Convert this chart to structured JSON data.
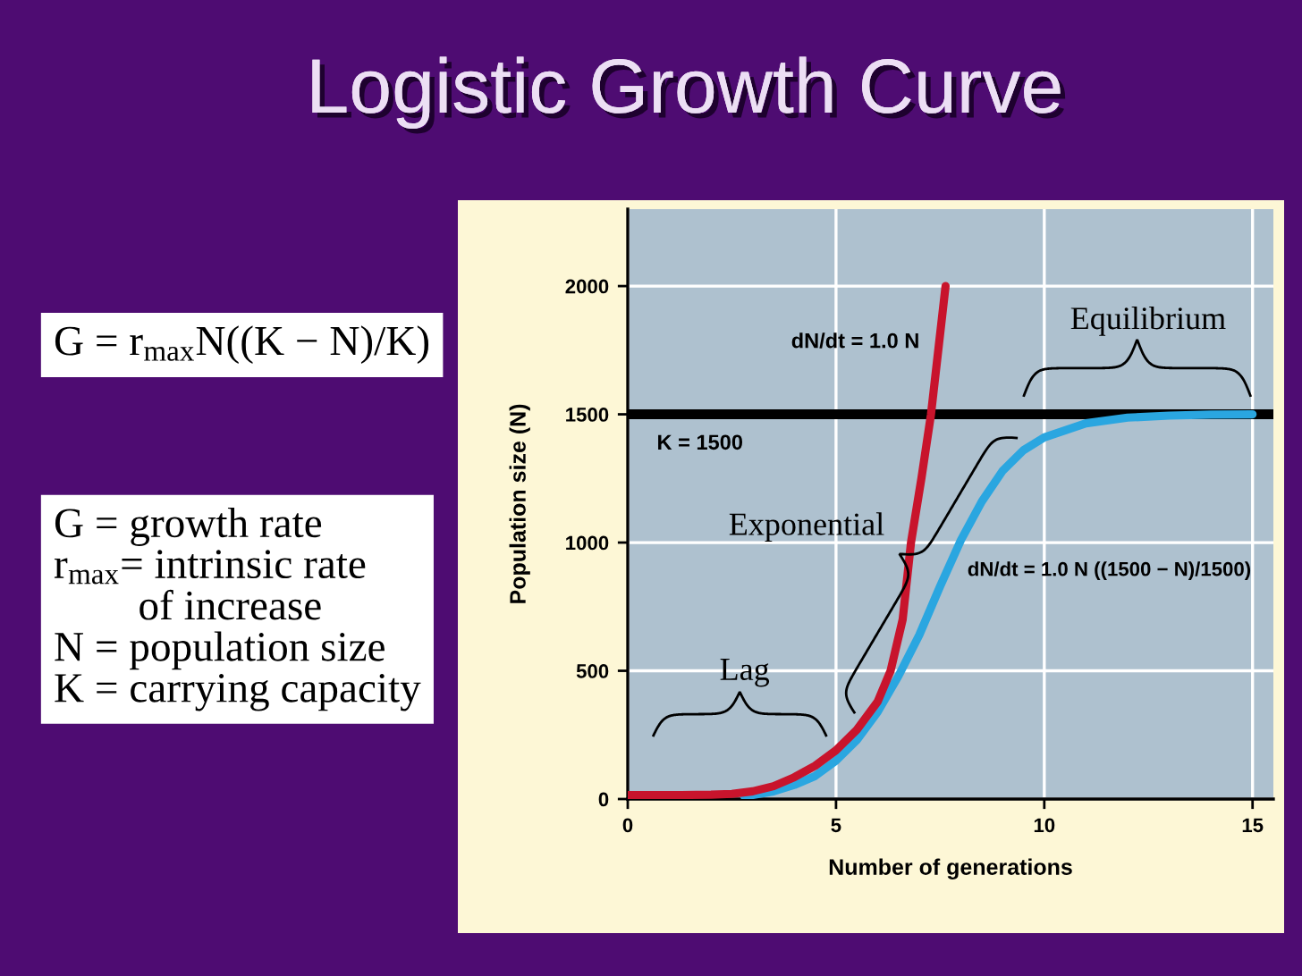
{
  "chart_data": {
    "type": "line",
    "title": "Logistic Growth Curve",
    "xlabel": "Number of generations",
    "ylabel": "Population size (N)",
    "xlim": [
      0,
      15.5
    ],
    "ylim": [
      0,
      2300
    ],
    "xticks": [
      0,
      5,
      10,
      15
    ],
    "yticks": [
      0,
      500,
      1000,
      1500,
      2000
    ],
    "grid": true,
    "series": [
      {
        "color": "#2aa6e0",
        "x": [
          2.8,
          3.5,
          4,
          4.5,
          5,
          5.5,
          6,
          6.5,
          7,
          7.5,
          8,
          8.5,
          9,
          9.5,
          10,
          11,
          12,
          13,
          14,
          15
        ],
        "values": [
          10,
          30,
          55,
          90,
          150,
          230,
          340,
          480,
          640,
          830,
          1010,
          1160,
          1280,
          1360,
          1410,
          1465,
          1487,
          1495,
          1499,
          1500
        ]
      },
      {
        "color": "#c8142c",
        "x": [
          0,
          1,
          2,
          2.5,
          3,
          3.5,
          4,
          4.5,
          5,
          5.5,
          6,
          6.31,
          6.6,
          6.8,
          7.05,
          7.28,
          7.63
        ],
        "values": [
          15,
          15,
          17,
          20,
          30,
          50,
          85,
          130,
          190,
          270,
          380,
          500,
          700,
          1000,
          1250,
          1500,
          2000
        ]
      }
    ],
    "ref_lines": [
      {
        "axis": "y",
        "value": 1500,
        "label": "K = 1500",
        "color": "#000000"
      }
    ],
    "annotations": [
      "G = r$_{max}$N((K − N)/K)",
      "G = growth rate\nr$_{max}$= intrinsic rate\n        of increase\nN = population size\nK = carrying capacity",
      "dN/dt = 1.0 N",
      "dN/dt = 1.0 N ((1500 − N)/1500)",
      "Lag",
      "Exponential",
      "Equilibrium"
    ]
  }
}
